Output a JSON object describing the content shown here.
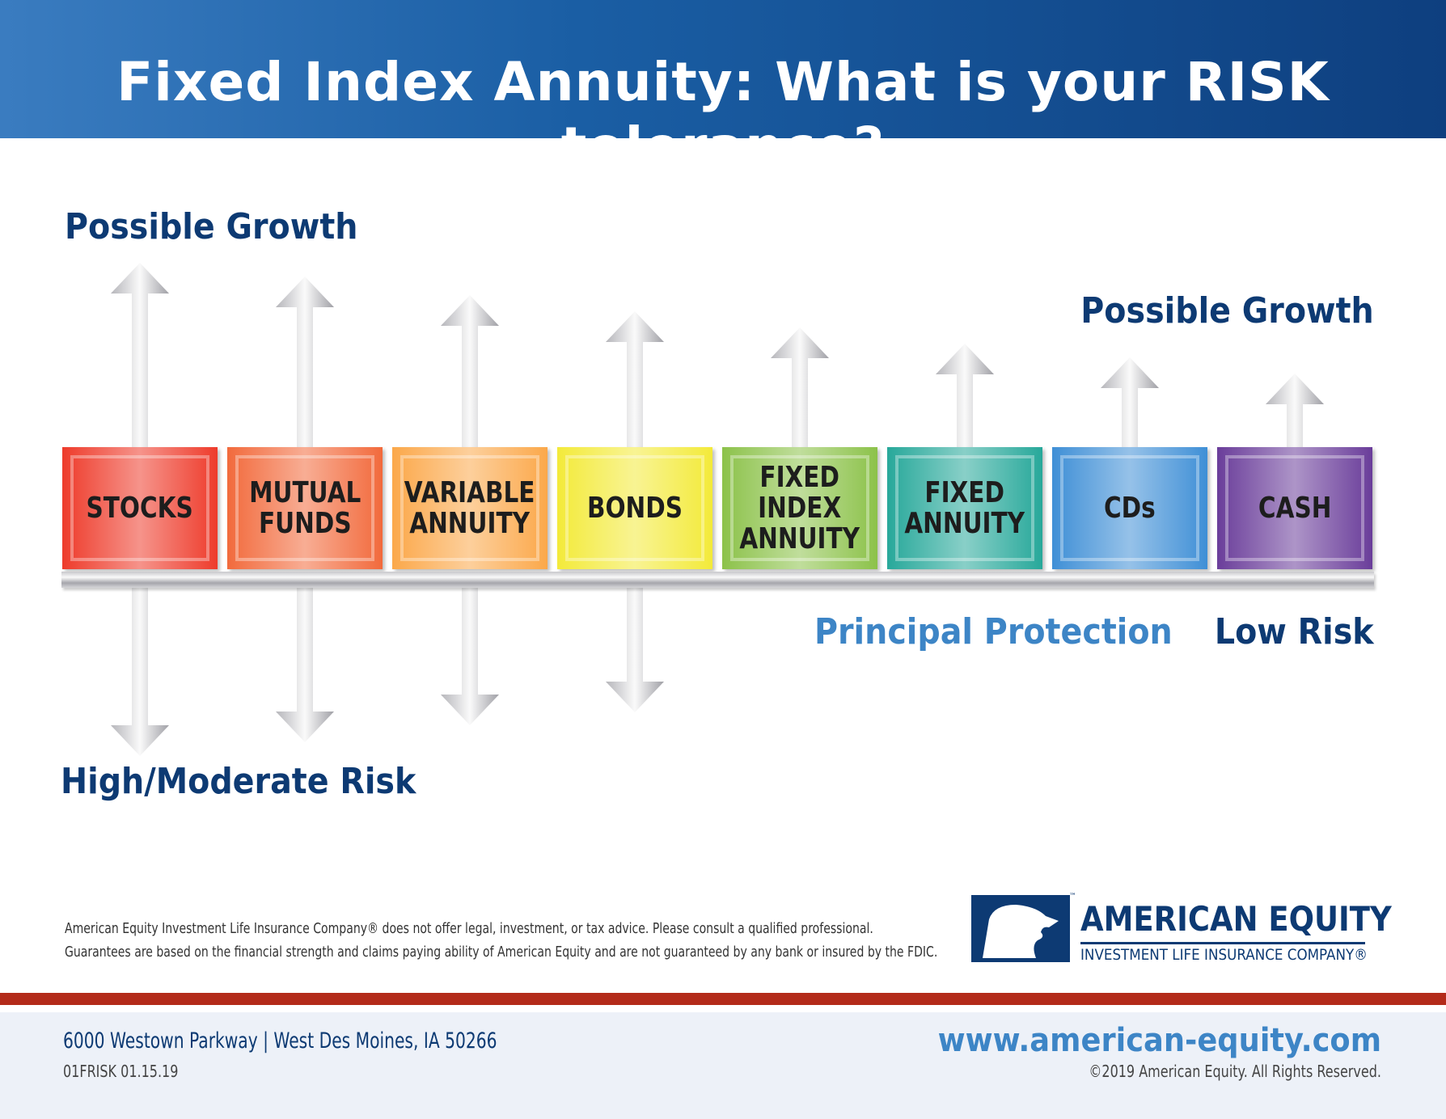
{
  "title": "Fixed Index Annuity: What is your RISK tolerance?",
  "labels": {
    "growth_left": "Possible Growth",
    "growth_right": "Possible Growth",
    "principal": "Principal Protection",
    "low_risk": "Low Risk",
    "high_risk": "High/Moderate Risk"
  },
  "products": [
    {
      "name": "STOCKS",
      "color": "#ee3b2b",
      "down": true
    },
    {
      "name": "MUTUAL\nFUNDS",
      "color": "#f26a3c",
      "down": true
    },
    {
      "name": "VARIABLE\nANNUITY",
      "color": "#fba84a",
      "down": true
    },
    {
      "name": "BONDS",
      "color": "#f3ea3a",
      "down": true
    },
    {
      "name": "FIXED\nINDEX\nANNUITY",
      "color": "#8cc24a",
      "down": false
    },
    {
      "name": "FIXED\nANNUITY",
      "color": "#27a89a",
      "down": false
    },
    {
      "name": "CDs",
      "color": "#3f8fd6",
      "down": false
    },
    {
      "name": "CASH",
      "color": "#6a3d9a",
      "down": false
    }
  ],
  "disclaimer": [
    "American Equity Investment Life Insurance Company® does not offer legal, investment, or tax advice. Please consult a qualified professional.",
    "Guarantees are based on the financial strength and claims paying ability of American Equity and are not guaranteed by any bank or insured by the FDIC."
  ],
  "logo": {
    "name": "AMERICAN EQUITY",
    "sub": "INVESTMENT LIFE INSURANCE COMPANY®",
    "tm": "™"
  },
  "footer": {
    "address": "6000 Westown Parkway | West Des Moines, IA 50266",
    "code": "01FRISK 01.15.19",
    "url": "www.american-equity.com",
    "copyright": "©2019 American Equity. All Rights Reserved."
  }
}
